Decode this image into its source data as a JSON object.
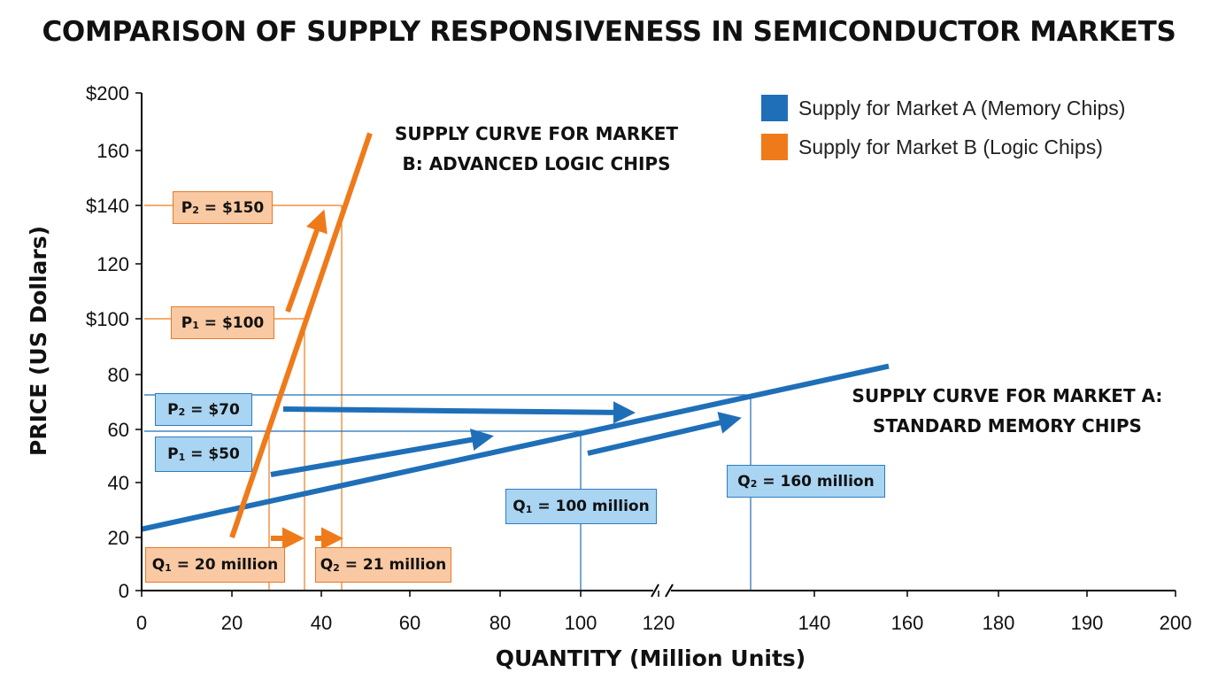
{
  "page": {
    "title": "COMPARISON OF SUPPLY RESPONSIVENESS IN SEMICONDUCTOR MARKETS"
  },
  "colors": {
    "market_a": "#1f6fb8",
    "market_b": "#ef7a1a",
    "box_a_fill": "#a9d4f2",
    "box_b_fill": "#f9c9a3"
  },
  "legend": {
    "items": [
      {
        "label": "Supply for Market A (Memory Chips)",
        "color": "#1f6fb8"
      },
      {
        "label": "Supply for Market B (Logic Chips)",
        "color": "#ef7a1a"
      }
    ]
  },
  "labels": {
    "curve_b_line1": "SUPPLY CURVE FOR MARKET",
    "curve_b_line2": "B: ADVANCED LOGIC CHIPS",
    "curve_a_line1": "SUPPLY CURVE FOR MARKET A:",
    "curve_a_line2": "STANDARD MEMORY CHIPS"
  },
  "boxes": {
    "b_p2": {
      "main": "P",
      "sub": "2",
      "rest": " = $150"
    },
    "b_p1": {
      "main": "P",
      "sub": "1",
      "rest": " = $100"
    },
    "a_p2": {
      "main": "P",
      "sub": "2",
      "rest": " = $70"
    },
    "a_p1": {
      "main": "P",
      "sub": "1",
      "rest": " = $50"
    },
    "b_q1": {
      "main": "Q",
      "sub": "1",
      "rest": " = 20 million"
    },
    "b_q2": {
      "main": "Q",
      "sub": "2",
      "rest": " = 21 million"
    },
    "a_q1": {
      "main": "Q",
      "sub": "1",
      "rest": " = 100 million"
    },
    "a_q2": {
      "main": "Q",
      "sub": "2",
      "rest": " = 160 million"
    }
  },
  "chart_data": {
    "type": "line",
    "title": "COMPARISON OF SUPPLY RESPONSIVENESS IN SEMICONDUCTOR MARKETS",
    "xlabel": "QUANTITY (Million Units)",
    "ylabel": "PRICE (US Dollars)",
    "xlim": [
      0,
      200
    ],
    "ylim": [
      0,
      200
    ],
    "x_axis_break": true,
    "x_ticks_left": [
      "0",
      "20",
      "40",
      "60",
      "80",
      "100"
    ],
    "x_ticks_right": [
      "120",
      "140",
      "160",
      "180",
      "190",
      "200"
    ],
    "y_ticks": [
      "0",
      "20",
      "40",
      "60",
      "80",
      "$100",
      "120",
      "$140",
      "160",
      "$200"
    ],
    "y_tick_values": [
      0,
      20,
      40,
      60,
      80,
      100,
      120,
      140,
      160,
      200
    ],
    "legend_position": "top-right",
    "grid": false,
    "series": [
      {
        "name": "Supply for Market A (Memory Chips)",
        "color": "#1f6fb8",
        "x": [
          0,
          156
        ],
        "y": [
          23,
          83
        ]
      },
      {
        "name": "Supply for Market B (Logic Chips)",
        "color": "#ef7a1a",
        "x": [
          20,
          51
        ],
        "y": [
          20,
          172
        ]
      }
    ]
  }
}
